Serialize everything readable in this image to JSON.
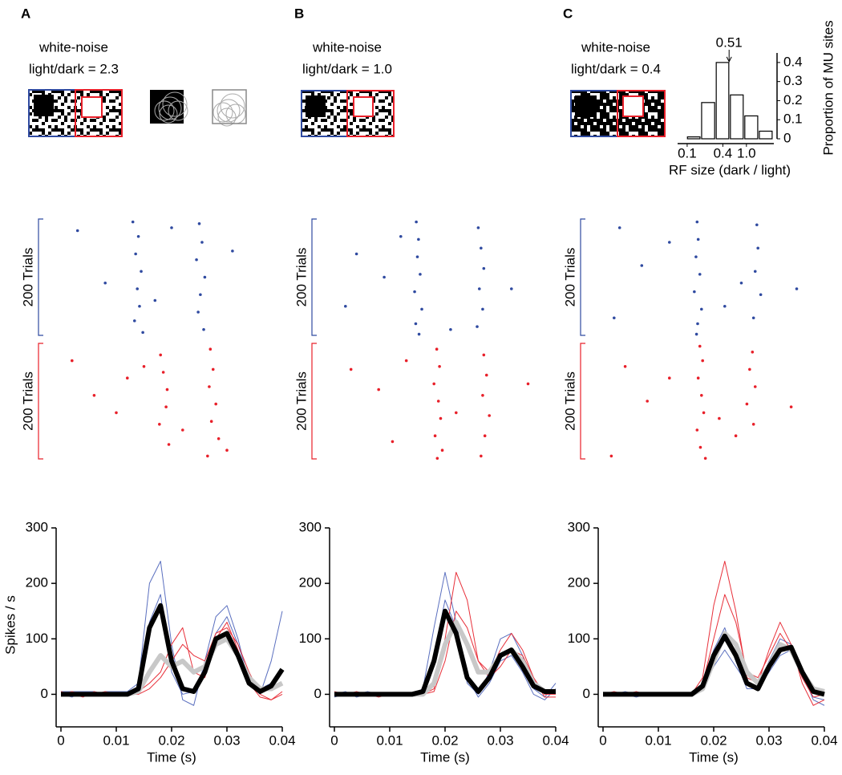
{
  "chart_data": [
    {
      "type": "raster",
      "panel": "A",
      "title": "white-noise",
      "subtitle": "light/dark = 2.3",
      "xlim": [
        0,
        0.04
      ],
      "ylim": [
        0,
        200
      ],
      "series": [
        {
          "color": "#2f4aa0",
          "label": "200 Trials",
          "x": [
            0.013,
            0.014,
            0.0135,
            0.0145,
            0.0138,
            0.0142,
            0.0133,
            0.0148,
            0.025,
            0.0255,
            0.0245,
            0.026,
            0.0252,
            0.0248,
            0.0258,
            0.003,
            0.008,
            0.02,
            0.031,
            0.017
          ],
          "trials": [
            5,
            30,
            60,
            90,
            120,
            150,
            175,
            195,
            8,
            40,
            70,
            100,
            130,
            160,
            190,
            20,
            110,
            15,
            55,
            140
          ]
        },
        {
          "color": "#e8202a",
          "label": "200 Trials",
          "x": [
            0.018,
            0.0185,
            0.0192,
            0.019,
            0.0178,
            0.0195,
            0.027,
            0.0275,
            0.0268,
            0.028,
            0.0272,
            0.0285,
            0.0265,
            0.002,
            0.006,
            0.012,
            0.022,
            0.01,
            0.015,
            0.03
          ],
          "trials": [
            20,
            50,
            80,
            110,
            140,
            175,
            10,
            45,
            75,
            105,
            135,
            165,
            195,
            30,
            90,
            60,
            150,
            120,
            40,
            185
          ]
        }
      ]
    },
    {
      "type": "line",
      "xlim": [
        0,
        0.04
      ],
      "ylim": [
        -50,
        300
      ],
      "xticks": [
        0,
        0.01,
        0.02,
        0.03,
        0.04
      ],
      "yticks": [
        0,
        100,
        200,
        300
      ],
      "xlabel": "Time (s)",
      "ylabel": "Spikes / s",
      "x": [
        0,
        0.002,
        0.004,
        0.006,
        0.008,
        0.01,
        0.012,
        0.014,
        0.016,
        0.018,
        0.02,
        0.022,
        0.024,
        0.026,
        0.028,
        0.03,
        0.032,
        0.034,
        0.036,
        0.038,
        0.04
      ],
      "series": [
        {
          "color": "#5a6fbf",
          "line_width": 1,
          "values": [
            5,
            5,
            5,
            0,
            5,
            5,
            5,
            20,
            200,
            240,
            90,
            -10,
            -20,
            60,
            140,
            160,
            100,
            20,
            0,
            60,
            150
          ]
        },
        {
          "color": "#5a6fbf",
          "line_width": 1,
          "values": [
            0,
            -5,
            5,
            5,
            0,
            0,
            0,
            10,
            130,
            180,
            40,
            0,
            5,
            50,
            110,
            140,
            90,
            30,
            10,
            20,
            40
          ]
        },
        {
          "color": "#e8303a",
          "line_width": 1,
          "values": [
            5,
            0,
            -5,
            5,
            0,
            0,
            0,
            5,
            20,
            40,
            90,
            120,
            40,
            30,
            100,
            130,
            80,
            20,
            -5,
            -10,
            5
          ]
        },
        {
          "color": "#e8303a",
          "line_width": 1,
          "values": [
            0,
            5,
            0,
            0,
            5,
            0,
            0,
            0,
            10,
            30,
            60,
            90,
            70,
            60,
            110,
            120,
            90,
            40,
            0,
            -10,
            0
          ]
        },
        {
          "color": "#c8c8c8",
          "line_width": 6,
          "values": [
            0,
            0,
            0,
            0,
            0,
            0,
            0,
            5,
            40,
            70,
            50,
            60,
            40,
            50,
            90,
            100,
            70,
            30,
            10,
            10,
            20
          ]
        },
        {
          "color": "#000000",
          "line_width": 6,
          "values": [
            0,
            0,
            0,
            0,
            0,
            0,
            0,
            10,
            120,
            160,
            60,
            10,
            5,
            40,
            100,
            110,
            70,
            20,
            5,
            15,
            45
          ]
        }
      ]
    },
    {
      "type": "raster",
      "panel": "B",
      "title": "white-noise",
      "subtitle": "light/dark = 1.0",
      "xlim": [
        0,
        0.04
      ],
      "ylim": [
        0,
        200
      ],
      "series": [
        {
          "color": "#2f4aa0",
          "label": "200 Trials",
          "x": [
            0.0148,
            0.0152,
            0.015,
            0.0155,
            0.0145,
            0.0158,
            0.0147,
            0.0153,
            0.026,
            0.0265,
            0.027,
            0.0262,
            0.0268,
            0.0258,
            0.004,
            0.009,
            0.021,
            0.032,
            0.012,
            0.002
          ],
          "trials": [
            5,
            35,
            65,
            95,
            125,
            155,
            180,
            198,
            15,
            50,
            85,
            120,
            155,
            185,
            60,
            100,
            190,
            120,
            30,
            150
          ]
        },
        {
          "color": "#e8202a",
          "label": "200 Trials",
          "x": [
            0.0185,
            0.019,
            0.018,
            0.0188,
            0.0192,
            0.0182,
            0.0195,
            0.0186,
            0.027,
            0.0275,
            0.0268,
            0.028,
            0.0272,
            0.0265,
            0.003,
            0.008,
            0.013,
            0.022,
            0.035,
            0.0105
          ],
          "trials": [
            10,
            40,
            70,
            100,
            130,
            160,
            185,
            199,
            20,
            55,
            90,
            125,
            160,
            195,
            45,
            80,
            30,
            120,
            70,
            170
          ]
        }
      ]
    },
    {
      "type": "line",
      "xlim": [
        0,
        0.04
      ],
      "ylim": [
        -50,
        300
      ],
      "xticks": [
        0,
        0.01,
        0.02,
        0.03,
        0.04
      ],
      "yticks": [
        0,
        100,
        200,
        300
      ],
      "xlabel": "Time (s)",
      "x": [
        0,
        0.002,
        0.004,
        0.006,
        0.008,
        0.01,
        0.012,
        0.014,
        0.016,
        0.018,
        0.02,
        0.022,
        0.024,
        0.026,
        0.028,
        0.03,
        0.032,
        0.034,
        0.036,
        0.038,
        0.04
      ],
      "series": [
        {
          "color": "#5a6fbf",
          "line_width": 1,
          "values": [
            0,
            5,
            -5,
            0,
            0,
            0,
            0,
            0,
            10,
            120,
            220,
            130,
            20,
            0,
            40,
            100,
            110,
            70,
            10,
            -5,
            20
          ]
        },
        {
          "color": "#5a6fbf",
          "line_width": 1,
          "values": [
            -5,
            0,
            0,
            5,
            0,
            0,
            0,
            0,
            5,
            70,
            170,
            120,
            30,
            -5,
            20,
            60,
            70,
            40,
            0,
            -10,
            10
          ]
        },
        {
          "color": "#e8303a",
          "line_width": 1,
          "values": [
            0,
            0,
            5,
            0,
            0,
            0,
            0,
            0,
            0,
            10,
            100,
            220,
            170,
            60,
            40,
            80,
            110,
            80,
            30,
            0,
            0
          ]
        },
        {
          "color": "#e8303a",
          "line_width": 1,
          "values": [
            5,
            0,
            0,
            0,
            -5,
            0,
            0,
            0,
            0,
            5,
            60,
            150,
            120,
            60,
            30,
            50,
            80,
            70,
            30,
            -5,
            -5
          ]
        },
        {
          "color": "#c8c8c8",
          "line_width": 6,
          "values": [
            0,
            0,
            0,
            0,
            0,
            0,
            0,
            0,
            0,
            20,
            90,
            130,
            90,
            40,
            40,
            70,
            80,
            60,
            20,
            5,
            5
          ]
        },
        {
          "color": "#000000",
          "line_width": 6,
          "values": [
            0,
            0,
            0,
            0,
            0,
            0,
            0,
            0,
            5,
            60,
            150,
            110,
            30,
            5,
            30,
            70,
            80,
            50,
            15,
            5,
            5
          ]
        }
      ]
    },
    {
      "type": "raster",
      "panel": "C",
      "title": "white-noise",
      "subtitle": "light/dark = 0.4",
      "xlim": [
        0,
        0.04
      ],
      "ylim": [
        0,
        200
      ],
      "series": [
        {
          "color": "#2f4aa0",
          "label": "200 Trials",
          "x": [
            0.017,
            0.0172,
            0.0168,
            0.0175,
            0.0165,
            0.0178,
            0.0171,
            0.0169,
            0.0278,
            0.028,
            0.0275,
            0.0285,
            0.0272,
            0.003,
            0.007,
            0.012,
            0.022,
            0.025,
            0.035,
            0.002
          ],
          "trials": [
            5,
            35,
            65,
            95,
            125,
            155,
            180,
            198,
            10,
            50,
            90,
            130,
            170,
            15,
            80,
            40,
            150,
            110,
            120,
            170
          ]
        },
        {
          "color": "#e8202a",
          "label": "200 Trials",
          "x": [
            0.0175,
            0.018,
            0.0172,
            0.0178,
            0.0182,
            0.017,
            0.0176,
            0.0185,
            0.027,
            0.0265,
            0.0275,
            0.026,
            0.0272,
            0.004,
            0.008,
            0.012,
            0.021,
            0.024,
            0.034,
            0.0015
          ],
          "trials": [
            5,
            30,
            60,
            90,
            120,
            150,
            180,
            199,
            15,
            45,
            75,
            105,
            140,
            40,
            100,
            60,
            130,
            160,
            110,
            195
          ]
        }
      ]
    },
    {
      "type": "line",
      "xlim": [
        0,
        0.04
      ],
      "ylim": [
        -50,
        300
      ],
      "xticks": [
        0,
        0.01,
        0.02,
        0.03,
        0.04
      ],
      "yticks": [
        0,
        100,
        200,
        300
      ],
      "xlabel": "Time (s)",
      "x": [
        0,
        0.002,
        0.004,
        0.006,
        0.008,
        0.01,
        0.012,
        0.014,
        0.016,
        0.018,
        0.02,
        0.022,
        0.024,
        0.026,
        0.028,
        0.03,
        0.032,
        0.034,
        0.036,
        0.038,
        0.04
      ],
      "series": [
        {
          "color": "#5a6fbf",
          "line_width": 1,
          "values": [
            0,
            0,
            5,
            0,
            0,
            0,
            0,
            0,
            0,
            20,
            80,
            120,
            60,
            10,
            10,
            60,
            100,
            90,
            30,
            -5,
            -10
          ]
        },
        {
          "color": "#5a6fbf",
          "line_width": 1,
          "values": [
            0,
            0,
            0,
            -5,
            0,
            0,
            0,
            0,
            0,
            10,
            50,
            80,
            50,
            20,
            10,
            40,
            70,
            80,
            40,
            -10,
            -20
          ]
        },
        {
          "color": "#e8303a",
          "line_width": 1,
          "values": [
            0,
            5,
            0,
            0,
            0,
            0,
            0,
            0,
            0,
            30,
            160,
            240,
            150,
            30,
            20,
            80,
            130,
            90,
            20,
            -20,
            -10
          ]
        },
        {
          "color": "#e8303a",
          "line_width": 1,
          "values": [
            0,
            0,
            0,
            5,
            0,
            0,
            0,
            0,
            0,
            20,
            100,
            180,
            130,
            40,
            30,
            70,
            110,
            80,
            30,
            -5,
            0
          ]
        },
        {
          "color": "#c8c8c8",
          "line_width": 6,
          "values": [
            0,
            0,
            0,
            0,
            0,
            0,
            0,
            0,
            0,
            10,
            60,
            110,
            90,
            40,
            20,
            50,
            90,
            80,
            40,
            10,
            5
          ]
        },
        {
          "color": "#000000",
          "line_width": 6,
          "values": [
            0,
            0,
            0,
            0,
            0,
            0,
            0,
            0,
            0,
            15,
            70,
            105,
            70,
            20,
            10,
            50,
            80,
            85,
            40,
            5,
            0
          ]
        }
      ]
    },
    {
      "type": "histogram",
      "xscale": "log",
      "xlim": [
        0.069,
        2.9
      ],
      "ylim": [
        0,
        0.45
      ],
      "bins": [
        0.098,
        0.17,
        0.3,
        0.52,
        0.91,
        1.6,
        2.8
      ],
      "counts": [
        0.01,
        0.19,
        0.4,
        0.23,
        0.12,
        0.04
      ],
      "xticks": [
        0.1,
        0.4,
        {
          "value": 1,
          "label": "1.0"
        }
      ],
      "yticks": [
        0,
        0.1,
        0.2,
        0.3,
        0.4
      ],
      "xlabel": "RF size (dark / light)",
      "ylabel": "Proportion of MU sites",
      "annotation": 0.51
    }
  ]
}
